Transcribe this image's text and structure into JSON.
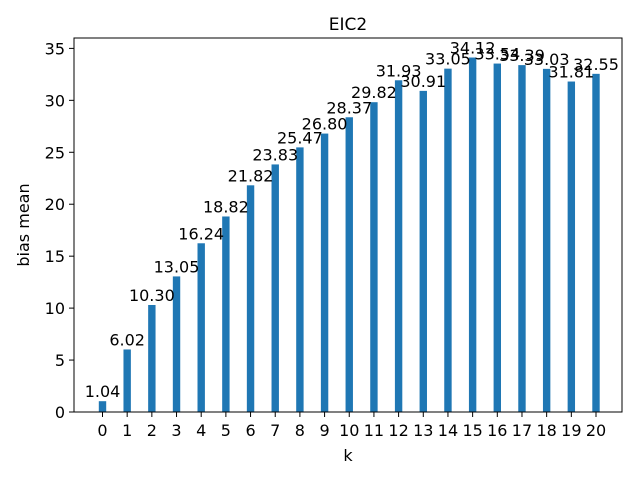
{
  "chart_data": {
    "type": "bar",
    "title": "EIC2",
    "xlabel": "k",
    "ylabel": "bias mean",
    "categories": [
      "0",
      "1",
      "2",
      "3",
      "4",
      "5",
      "6",
      "7",
      "8",
      "9",
      "10",
      "11",
      "12",
      "13",
      "14",
      "15",
      "16",
      "17",
      "18",
      "19",
      "20"
    ],
    "values": [
      1.04,
      6.02,
      10.3,
      13.05,
      16.24,
      18.82,
      21.82,
      23.83,
      25.47,
      26.8,
      28.37,
      29.82,
      31.93,
      30.91,
      33.05,
      34.12,
      33.54,
      33.39,
      33.03,
      31.81,
      32.55
    ],
    "data_labels": [
      "1.04",
      "6.02",
      "10.30",
      "13.05",
      "16.24",
      "18.82",
      "21.82",
      "23.83",
      "25.47",
      "26.80",
      "28.37",
      "29.82",
      "31.93",
      "30.91",
      "33.05",
      "34.12",
      "33.54",
      "33.39",
      "33.03",
      "31.81",
      "32.55"
    ],
    "ylim": [
      0,
      36
    ],
    "yticks": [
      0,
      5,
      10,
      15,
      20,
      25,
      30,
      35
    ],
    "bar_color": "#1f77b4",
    "grid": false,
    "legend": "none"
  }
}
